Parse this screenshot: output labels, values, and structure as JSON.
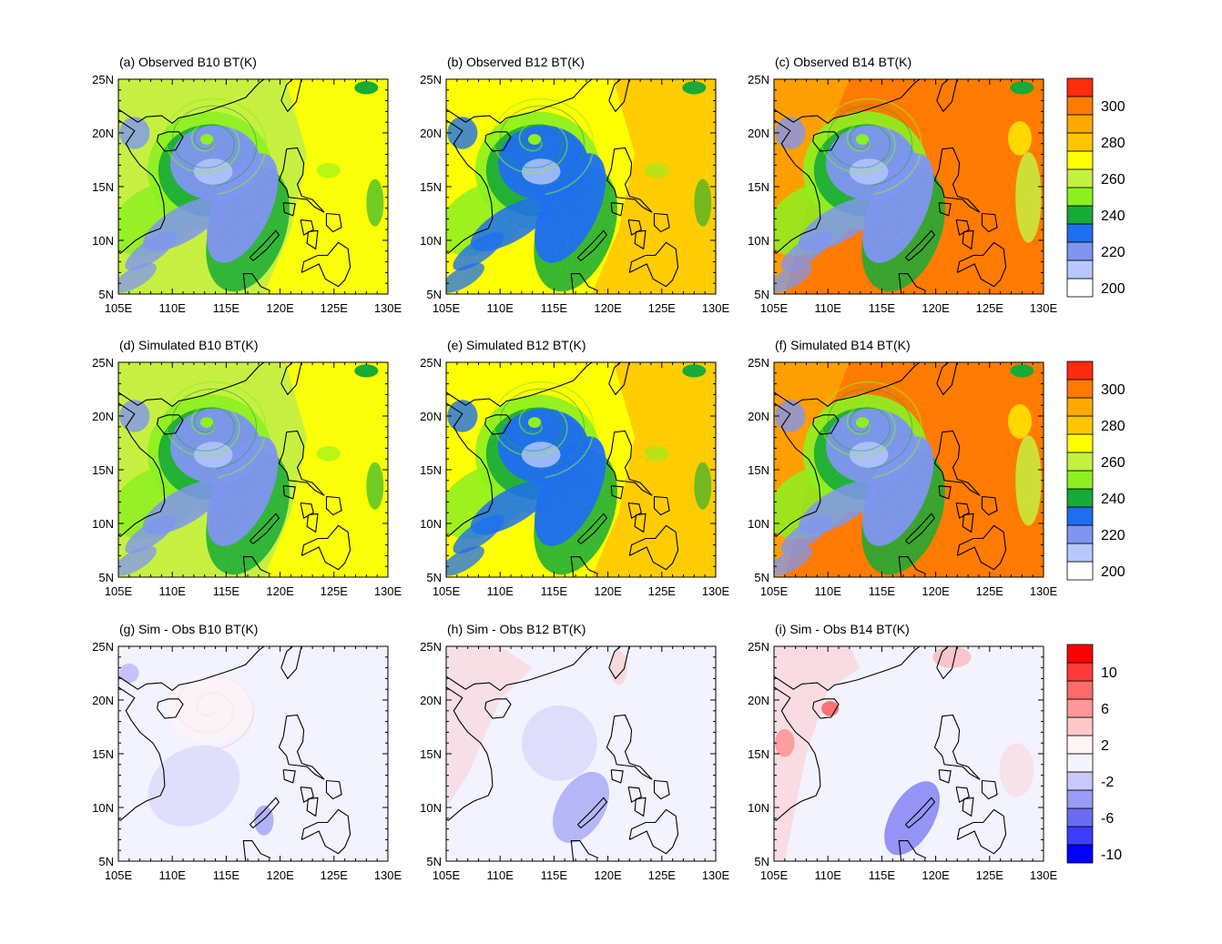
{
  "chart_data": [
    {
      "type": "heatmap",
      "title": "(a) Observed B10 BT(K)",
      "field": "obs",
      "band": "B10",
      "xlabels": [
        "105E",
        "110E",
        "115E",
        "120E",
        "125E",
        "130E"
      ],
      "ylabels": [
        "5N",
        "10N",
        "15N",
        "20N",
        "25N"
      ],
      "xlim": [
        105,
        130
      ],
      "ylim": [
        5,
        25
      ],
      "palette": "bt"
    },
    {
      "type": "heatmap",
      "title": "(b) Observed B12 BT(K)",
      "field": "obs",
      "band": "B12",
      "xlabels": [
        "105E",
        "110E",
        "115E",
        "120E",
        "125E",
        "130E"
      ],
      "ylabels": [
        "5N",
        "10N",
        "15N",
        "20N",
        "25N"
      ],
      "xlim": [
        105,
        130
      ],
      "ylim": [
        5,
        25
      ],
      "palette": "bt"
    },
    {
      "type": "heatmap",
      "title": "(c) Observed B14 BT(K)",
      "field": "obs",
      "band": "B14",
      "xlabels": [
        "105E",
        "110E",
        "115E",
        "120E",
        "125E",
        "130E"
      ],
      "ylabels": [
        "5N",
        "10N",
        "15N",
        "20N",
        "25N"
      ],
      "xlim": [
        105,
        130
      ],
      "ylim": [
        5,
        25
      ],
      "palette": "bt"
    },
    {
      "type": "heatmap",
      "title": "(d) Simulated B10 BT(K)",
      "field": "sim",
      "band": "B10",
      "xlabels": [
        "105E",
        "110E",
        "115E",
        "120E",
        "125E",
        "130E"
      ],
      "ylabels": [
        "5N",
        "10N",
        "15N",
        "20N",
        "25N"
      ],
      "xlim": [
        105,
        130
      ],
      "ylim": [
        5,
        25
      ],
      "palette": "bt"
    },
    {
      "type": "heatmap",
      "title": "(e) Simulated B12 BT(K)",
      "field": "sim",
      "band": "B12",
      "xlabels": [
        "105E",
        "110E",
        "115E",
        "120E",
        "125E",
        "130E"
      ],
      "ylabels": [
        "5N",
        "10N",
        "15N",
        "20N",
        "25N"
      ],
      "xlim": [
        105,
        130
      ],
      "ylim": [
        5,
        25
      ],
      "palette": "bt"
    },
    {
      "type": "heatmap",
      "title": "(f) Simulated B14 BT(K)",
      "field": "sim",
      "band": "B14",
      "xlabels": [
        "105E",
        "110E",
        "115E",
        "120E",
        "125E",
        "130E"
      ],
      "ylabels": [
        "5N",
        "10N",
        "15N",
        "20N",
        "25N"
      ],
      "xlim": [
        105,
        130
      ],
      "ylim": [
        5,
        25
      ],
      "palette": "bt"
    },
    {
      "type": "heatmap",
      "title": "(g) Sim - Obs B10 BT(K)",
      "field": "diff",
      "band": "B10",
      "xlabels": [
        "105E",
        "110E",
        "115E",
        "120E",
        "125E",
        "130E"
      ],
      "ylabels": [
        "5N",
        "10N",
        "15N",
        "20N",
        "25N"
      ],
      "xlim": [
        105,
        130
      ],
      "ylim": [
        5,
        25
      ],
      "palette": "diff"
    },
    {
      "type": "heatmap",
      "title": "(h) Sim - Obs B12 BT(K)",
      "field": "diff",
      "band": "B12",
      "xlabels": [
        "105E",
        "110E",
        "115E",
        "120E",
        "125E",
        "130E"
      ],
      "ylabels": [
        "5N",
        "10N",
        "15N",
        "20N",
        "25N"
      ],
      "xlim": [
        105,
        130
      ],
      "ylim": [
        5,
        25
      ],
      "palette": "diff"
    },
    {
      "type": "heatmap",
      "title": "(i) Sim - Obs B14 BT(K)",
      "field": "diff",
      "band": "B14",
      "xlabels": [
        "105E",
        "110E",
        "115E",
        "120E",
        "125E",
        "130E"
      ],
      "ylabels": [
        "5N",
        "10N",
        "15N",
        "20N",
        "25N"
      ],
      "xlim": [
        105,
        130
      ],
      "ylim": [
        5,
        25
      ],
      "palette": "diff"
    }
  ],
  "colorbars": {
    "bt": {
      "colors": [
        "#ffffff",
        "#b8c8ff",
        "#7f95f0",
        "#1f6ef0",
        "#16aa36",
        "#8cf020",
        "#c6f040",
        "#ffff00",
        "#ffc600",
        "#ffa800",
        "#ff7a00",
        "#ff2a10"
      ],
      "labels": [
        "200",
        "220",
        "240",
        "260",
        "280",
        "300"
      ],
      "values": [
        200,
        220,
        240,
        260,
        280,
        300
      ]
    },
    "diff": {
      "colors": [
        "#0000ff",
        "#3d3dff",
        "#6b6bf2",
        "#9b9bf5",
        "#c8c8fa",
        "#f4f4ff",
        "#fff4f4",
        "#ffc8c8",
        "#ff9898",
        "#ff6a6a",
        "#ff3a3a",
        "#ff0000"
      ],
      "labels": [
        "10",
        "6",
        "2",
        "-2",
        "-6",
        "-10"
      ],
      "values": [
        10,
        6,
        2,
        -2,
        -6,
        -10
      ]
    }
  }
}
